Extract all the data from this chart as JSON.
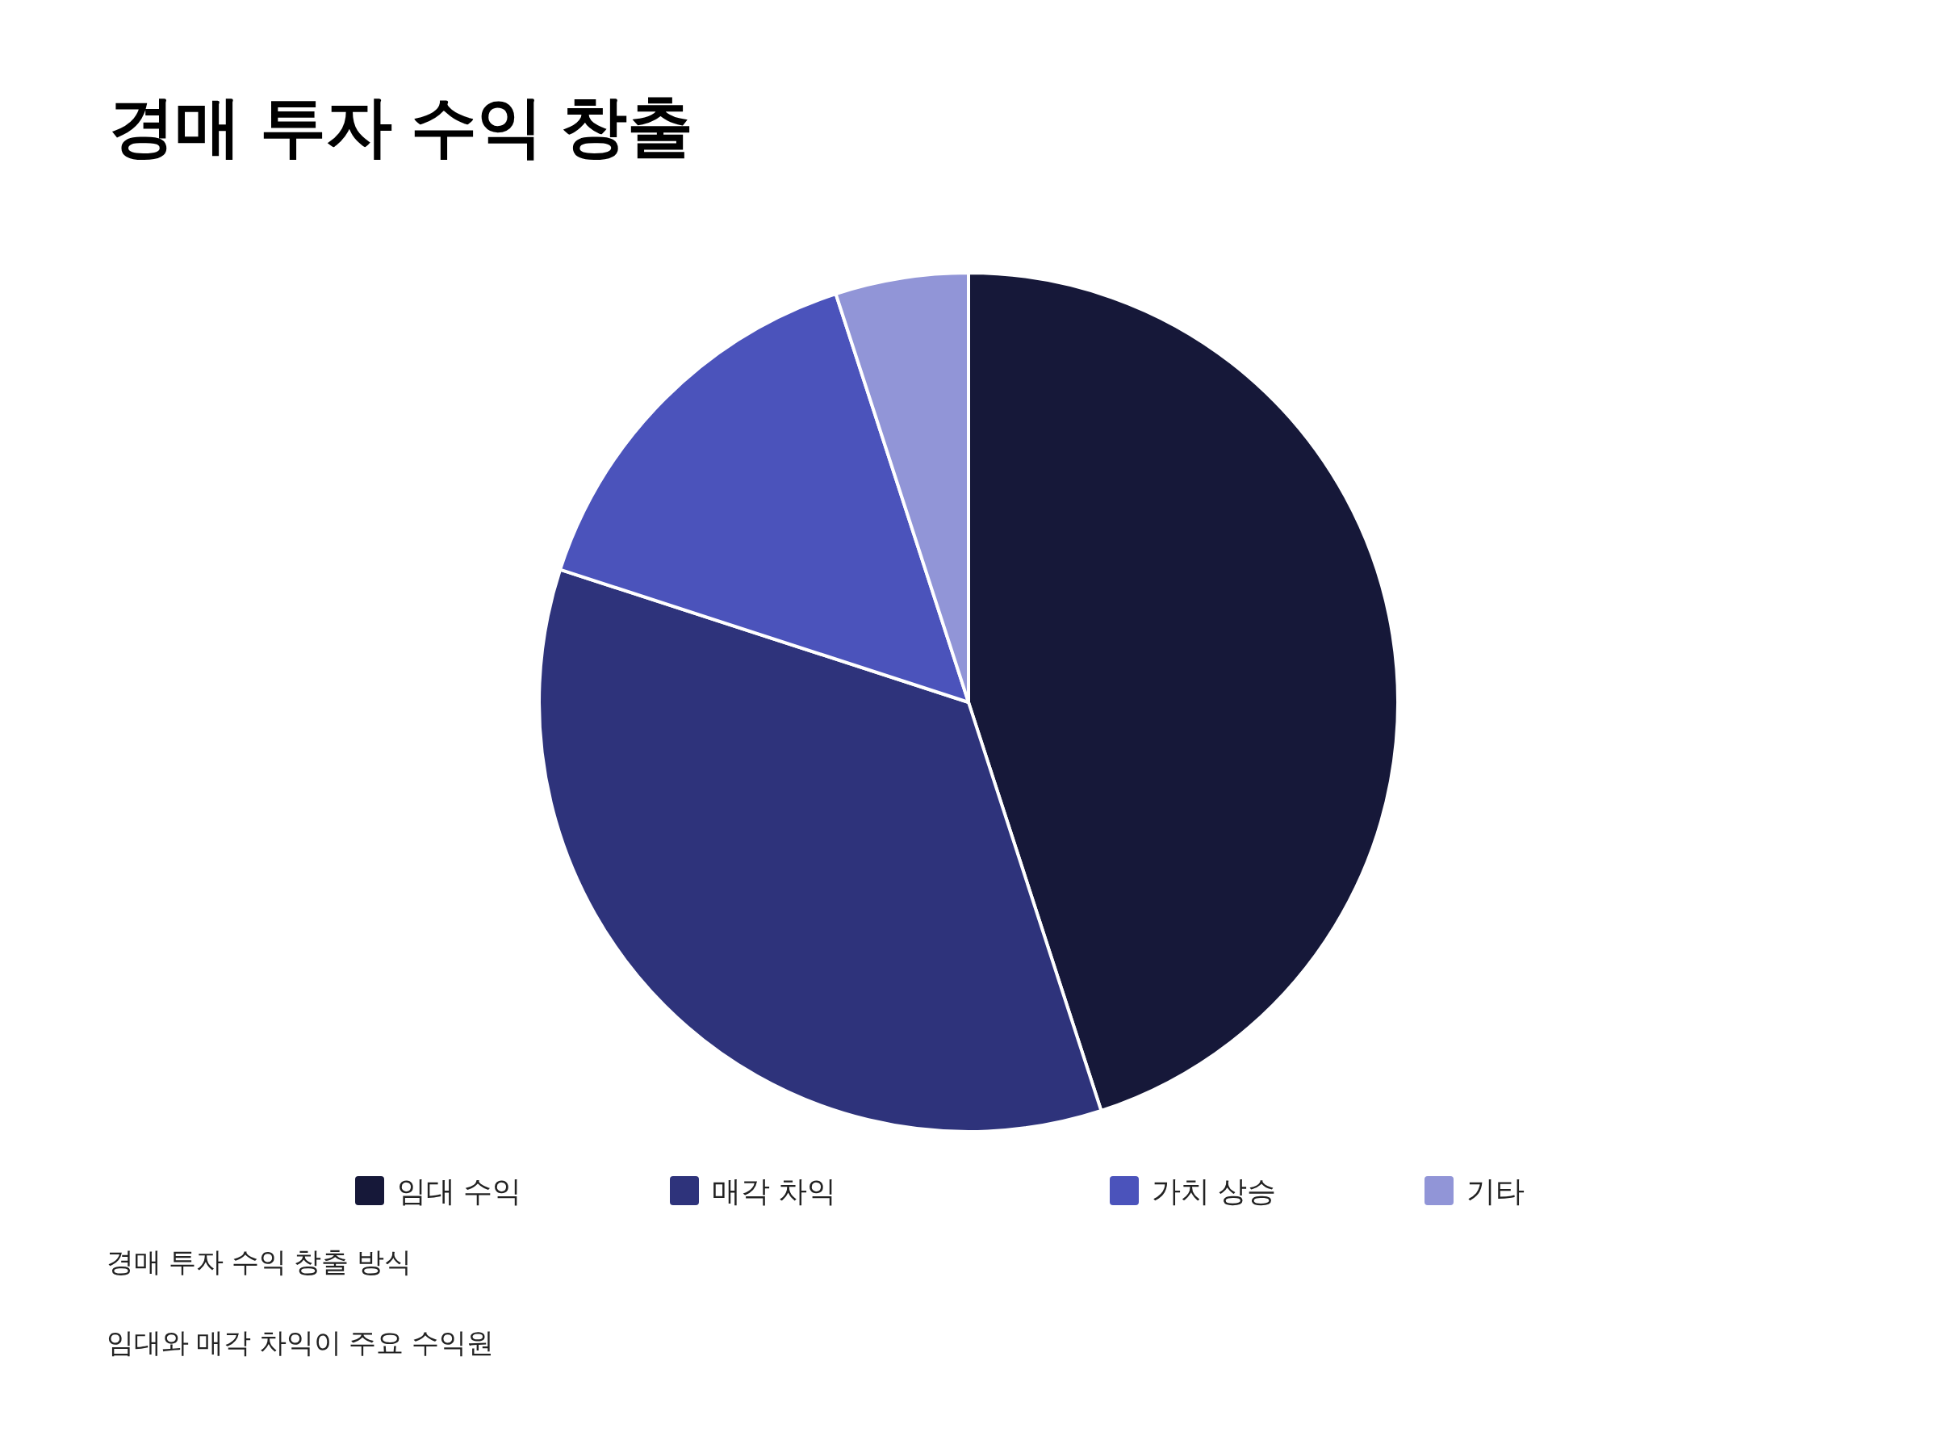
{
  "chart_data": {
    "type": "pie",
    "title": "경매 투자 수익 창출",
    "categories": [
      "임대 수익",
      "매각 차익",
      "가치 상승",
      "기타"
    ],
    "values": [
      45,
      35,
      15,
      5
    ],
    "colors": [
      "#161839",
      "#2e337b",
      "#4b53bb",
      "#9195d7"
    ],
    "legend": "bottom",
    "annotations": [
      "경매 투자 수익 창출 방식",
      "임대와 매각 차익이 주요 수익원"
    ]
  }
}
